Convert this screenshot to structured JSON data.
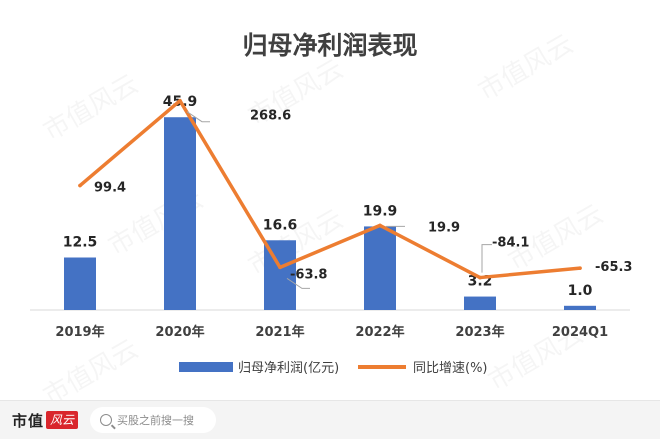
{
  "chart_data": {
    "type": "bar",
    "title": "归母净利润表现",
    "categories": [
      "2019年",
      "2020年",
      "2021年",
      "2022年",
      "2023年",
      "2024Q1"
    ],
    "series": [
      {
        "name": "归母净利润(亿元)",
        "type": "bar",
        "axis": "left",
        "color": "#4472c4",
        "values": [
          12.5,
          45.9,
          16.6,
          19.9,
          3.2,
          1.0
        ],
        "labels": [
          "12.5",
          "45.9",
          "16.6",
          "19.9",
          "3.2",
          "1.0"
        ]
      },
      {
        "name": "同比增速(%)",
        "type": "line",
        "axis": "right",
        "color": "#ed7d31",
        "values": [
          99.4,
          268.6,
          -63.8,
          19.9,
          -84.1,
          -65.3
        ],
        "labels": [
          "99.4",
          "268.6",
          "-63.8",
          "19.9",
          "-84.1",
          "-65.3"
        ]
      }
    ],
    "legend_position": "bottom",
    "grid": false
  },
  "watermark": "市值风云",
  "footer": {
    "brand_text": "市值",
    "brand_mark": "风云",
    "search_placeholder": "买股之前搜一搜"
  }
}
